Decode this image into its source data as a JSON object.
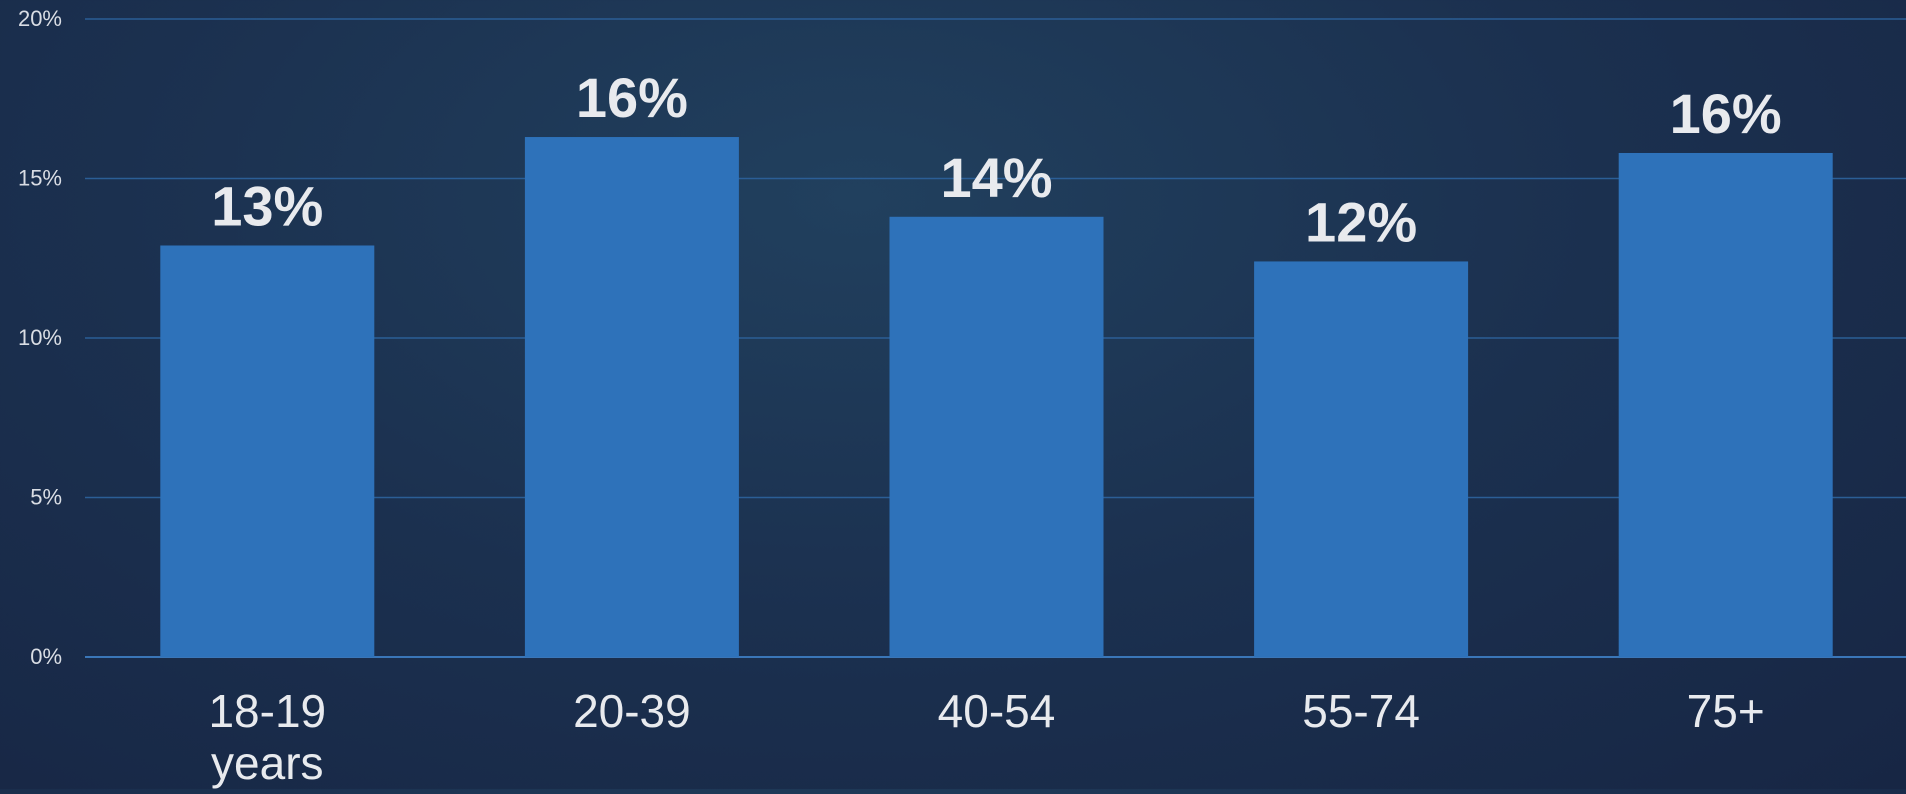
{
  "chart_data": {
    "type": "bar",
    "title": "",
    "xlabel": "",
    "ylabel": "",
    "categories": [
      "18-19 years",
      "20-39",
      "40-54",
      "55-74",
      "75+"
    ],
    "values": [
      12.9,
      16.3,
      13.8,
      12.4,
      15.8
    ],
    "data_labels": [
      "13%",
      "16%",
      "14%",
      "12%",
      "16%"
    ],
    "ylim": [
      0,
      20
    ],
    "yticks": [
      0,
      5,
      10,
      15,
      20
    ],
    "ytick_labels": [
      "0%",
      "5%",
      "10%",
      "15%",
      "20%"
    ],
    "grid": true,
    "legend": "none",
    "colors": {
      "bar": "#2e72ba",
      "grid": "#2b5e96",
      "axis": "#3a76b8",
      "text": "#e8eaee",
      "tick_text": "#d9dde4"
    }
  }
}
